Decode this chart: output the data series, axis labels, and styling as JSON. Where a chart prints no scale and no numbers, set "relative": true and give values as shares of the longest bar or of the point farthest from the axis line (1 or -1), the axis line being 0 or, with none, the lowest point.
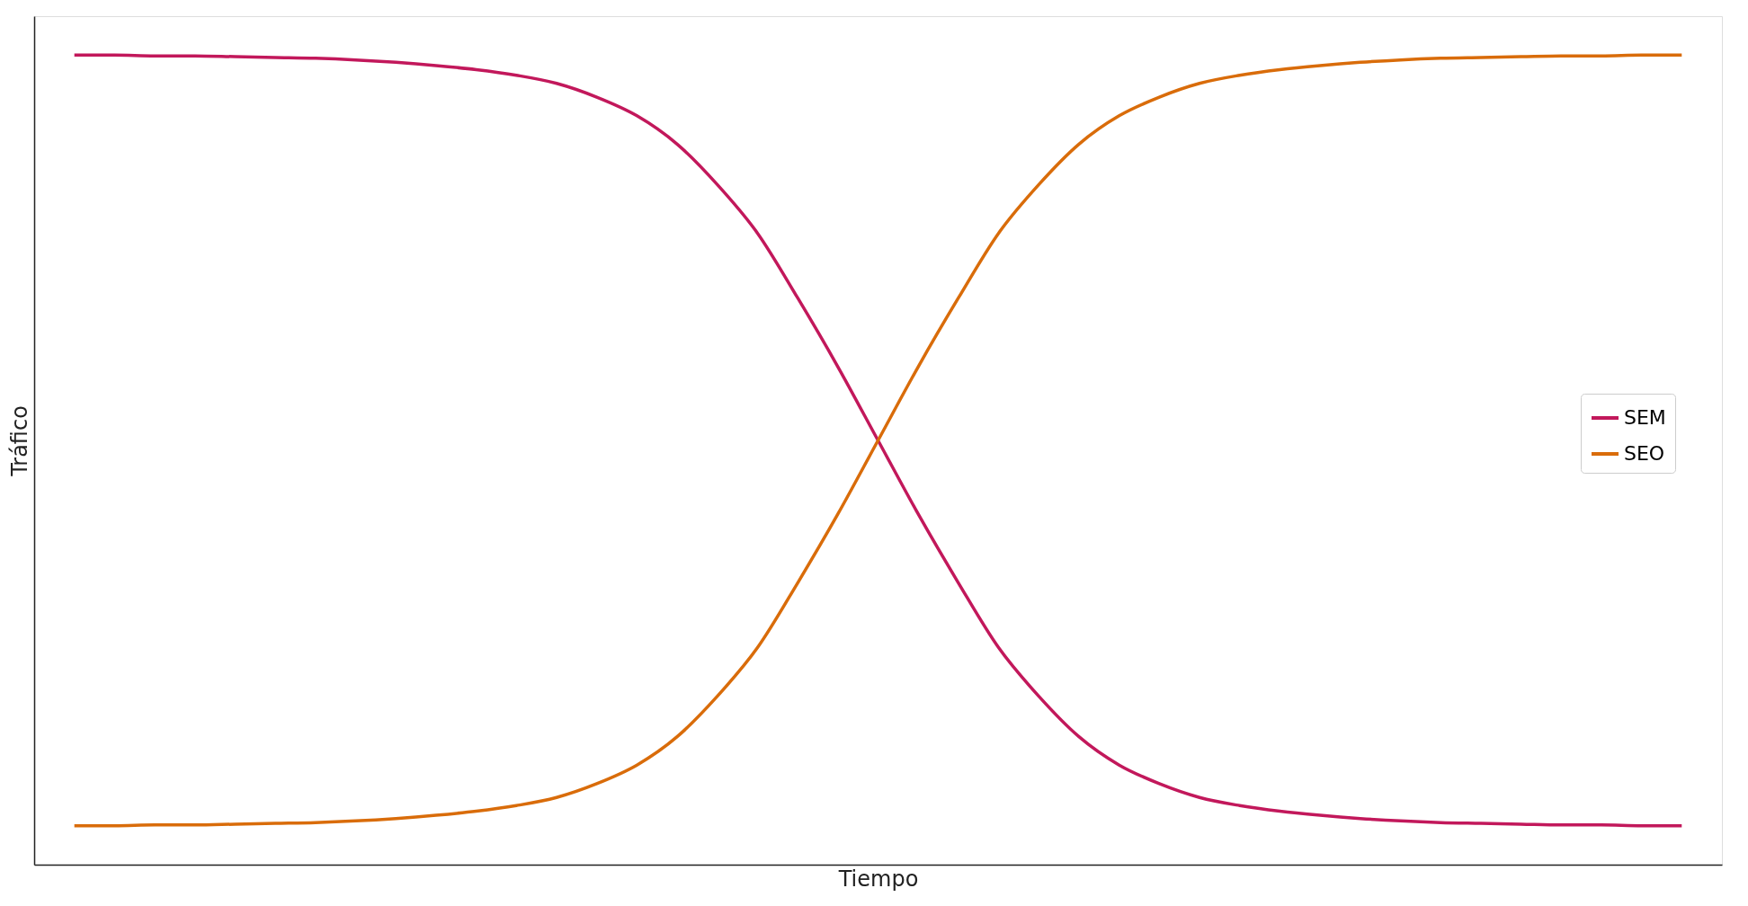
{
  "chart_data": {
    "type": "line",
    "relative": true,
    "xlabel": "Tiempo",
    "ylabel": "Tráfico",
    "legend": "right",
    "grid": false,
    "marker": "none",
    "line_style": "solid",
    "categories": [
      null,
      null,
      null,
      null,
      null,
      null,
      null,
      null,
      null,
      null,
      null,
      null,
      null,
      null,
      null,
      null,
      null,
      null,
      null,
      null,
      null,
      null,
      null,
      null,
      null,
      null,
      null,
      null,
      null,
      null,
      null,
      null,
      null,
      null,
      null,
      null,
      null,
      null,
      null,
      null,
      null
    ],
    "series": [
      {
        "name": "SEM",
        "color": "#c2185b",
        "values": [
          1.0,
          1.0,
          0.999,
          0.999,
          0.998,
          0.997,
          0.996,
          0.994,
          0.991,
          0.987,
          0.982,
          0.975,
          0.965,
          0.948,
          0.925,
          0.89,
          0.84,
          0.78,
          0.7,
          0.615,
          0.524,
          0.433,
          0.348,
          0.268,
          0.208,
          0.158,
          0.123,
          0.1,
          0.083,
          0.073,
          0.066,
          0.061,
          0.057,
          0.054,
          0.052,
          0.051,
          0.05,
          0.049,
          0.049,
          0.048,
          0.048
        ]
      },
      {
        "name": "SEO",
        "color": "#d96c0a",
        "values": [
          0.048,
          0.048,
          0.049,
          0.049,
          0.05,
          0.051,
          0.052,
          0.054,
          0.057,
          0.061,
          0.066,
          0.073,
          0.083,
          0.1,
          0.123,
          0.158,
          0.208,
          0.268,
          0.348,
          0.433,
          0.524,
          0.615,
          0.7,
          0.78,
          0.84,
          0.89,
          0.925,
          0.948,
          0.965,
          0.975,
          0.982,
          0.987,
          0.991,
          0.994,
          0.996,
          0.997,
          0.998,
          0.999,
          0.999,
          1.0,
          1.0
        ]
      }
    ]
  }
}
